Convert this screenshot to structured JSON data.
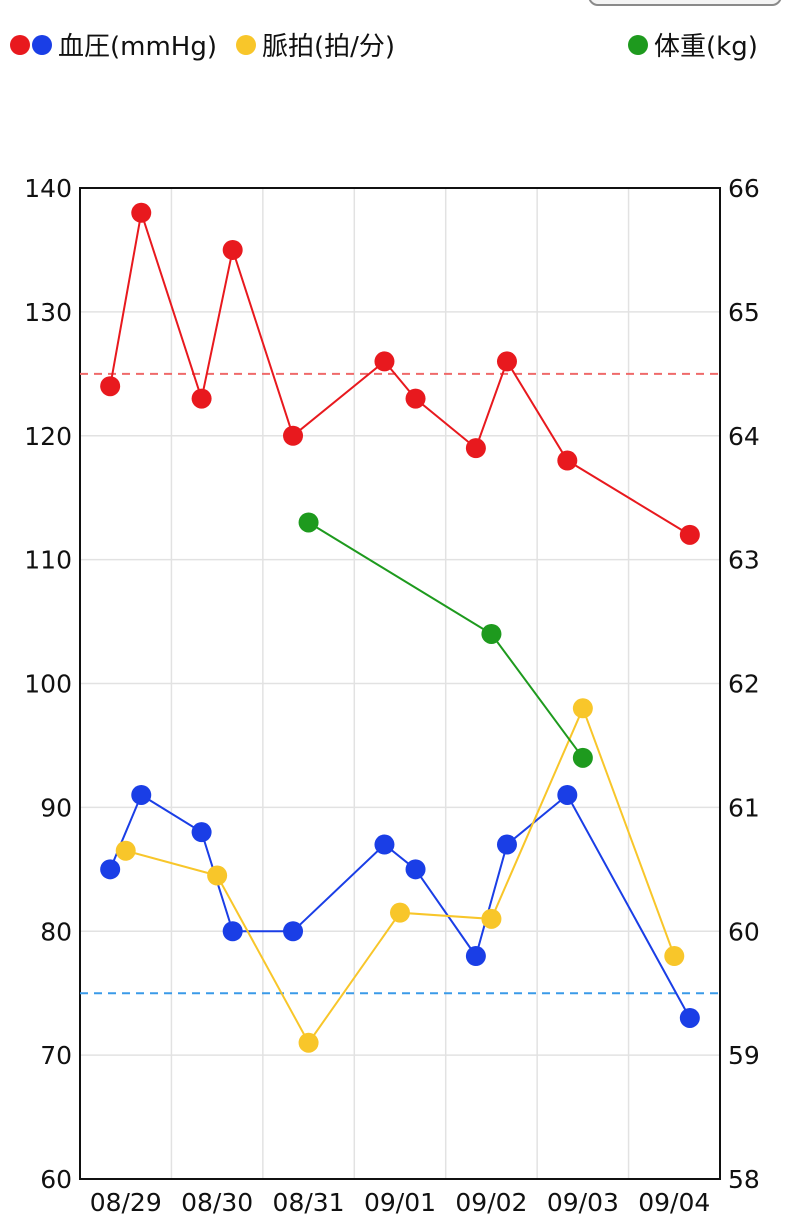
{
  "legend": {
    "bp_label": "血圧(mmHg)",
    "pulse_label": "脈拍(拍/分)",
    "weight_label": "体重(kg)"
  },
  "colors": {
    "systolic": "#e8191e",
    "diastolic": "#1a3ee6",
    "pulse": "#f8c62a",
    "weight": "#1e9a1e",
    "systolic_ref": "#ef6a6a",
    "diastolic_ref": "#3a9ae8",
    "grid": "#e2e2e2"
  },
  "chart_data": {
    "type": "line",
    "x_categories": [
      "08/29",
      "08/30",
      "08/31",
      "09/01",
      "09/02",
      "09/03",
      "09/04"
    ],
    "y_left": {
      "range": [
        60,
        140
      ],
      "ticks": [
        60,
        70,
        80,
        90,
        100,
        110,
        120,
        130,
        140
      ]
    },
    "y_right": {
      "range": [
        58,
        66
      ],
      "ticks": [
        58,
        59,
        60,
        61,
        62,
        63,
        64,
        65,
        66
      ]
    },
    "grid": true,
    "reference_lines": [
      {
        "axis": "left",
        "value": 125,
        "color": "systolic_ref",
        "dashed": true
      },
      {
        "axis": "left",
        "value": 75,
        "color": "diastolic_ref",
        "dashed": true
      }
    ],
    "series": [
      {
        "axis": "left",
        "color": "systolic",
        "points": [
          [
            0.33,
            124
          ],
          [
            0.67,
            138
          ],
          [
            1.33,
            123
          ],
          [
            1.67,
            135
          ],
          [
            2.33,
            120
          ],
          [
            3.33,
            126
          ],
          [
            3.67,
            123
          ],
          [
            4.33,
            119
          ],
          [
            4.67,
            126
          ],
          [
            5.33,
            118
          ],
          [
            6.67,
            112
          ]
        ]
      },
      {
        "axis": "left",
        "color": "diastolic",
        "points": [
          [
            0.33,
            85
          ],
          [
            0.67,
            91
          ],
          [
            1.33,
            88
          ],
          [
            1.67,
            80
          ],
          [
            2.33,
            80
          ],
          [
            3.33,
            87
          ],
          [
            3.67,
            85
          ],
          [
            4.33,
            78
          ],
          [
            4.67,
            87
          ],
          [
            5.33,
            91
          ],
          [
            6.67,
            73
          ]
        ]
      },
      {
        "axis": "left",
        "color": "pulse",
        "points": [
          [
            0.5,
            86.5
          ],
          [
            1.5,
            84.5
          ],
          [
            2.5,
            71
          ],
          [
            3.5,
            81.5
          ],
          [
            4.5,
            81
          ],
          [
            5.5,
            98
          ],
          [
            6.5,
            78
          ]
        ]
      },
      {
        "axis": "right",
        "color": "weight",
        "points": [
          [
            2.5,
            63.3
          ],
          [
            4.5,
            62.4
          ],
          [
            5.5,
            61.4
          ]
        ]
      }
    ]
  }
}
